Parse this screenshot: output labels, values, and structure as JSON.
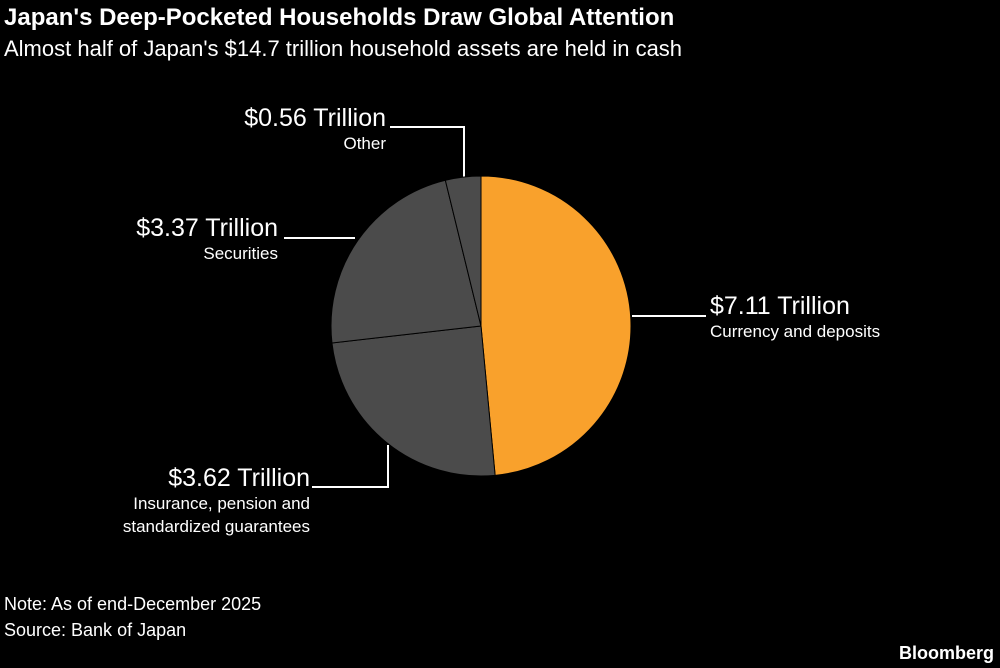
{
  "chart_data": {
    "type": "pie",
    "title": "Japan's Deep-Pocketed Households Draw Global Attention",
    "subtitle": "Almost half of Japan's $14.7 trillion household assets are held in cash",
    "categories": [
      "Currency and deposits",
      "Insurance, pension and standardized guarantees",
      "Securities",
      "Other"
    ],
    "values": [
      7.11,
      3.62,
      3.37,
      0.56
    ],
    "value_labels": [
      "$7.11 Trillion",
      "$3.62 Trillion",
      "$3.37 Trillion",
      "$0.56 Trillion"
    ],
    "colors": [
      "#f9a12c",
      "#4b4b4b",
      "#4b4b4b",
      "#4b4b4b"
    ],
    "note": "Note: As of end-December 2025",
    "source": "Source: Bank of Japan",
    "brand": "Bloomberg"
  }
}
